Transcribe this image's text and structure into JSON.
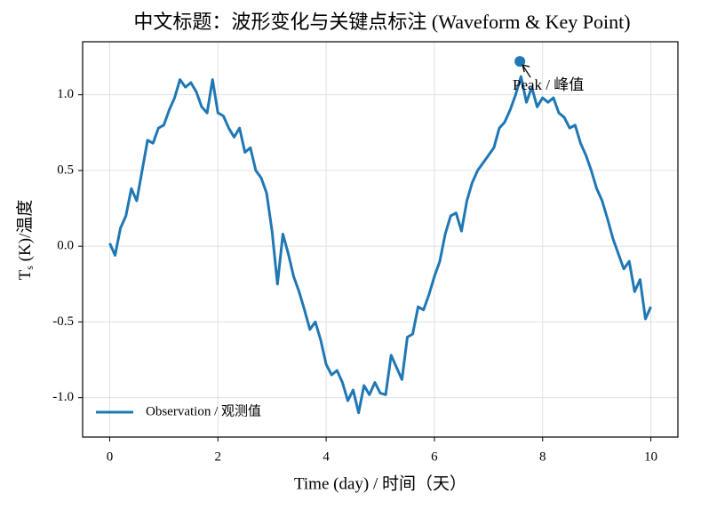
{
  "chart_data": {
    "type": "line",
    "title": "中文标题：波形变化与关键点标注 (Waveform & Key Point)",
    "xlabel": "Time (day) / 时间（天）",
    "ylabel": {
      "main": "T",
      "sub": "s",
      "rest": " (K)/温度"
    },
    "xlim": [
      -0.5,
      10.5
    ],
    "ylim": [
      -1.26,
      1.35
    ],
    "xticks": [
      0,
      2,
      4,
      6,
      8,
      10
    ],
    "yticks": [
      {
        "value": -1,
        "label": "-1.0"
      },
      -0.5,
      {
        "value": 0,
        "label": "0.0"
      },
      0.5,
      {
        "value": 1,
        "label": "1.0"
      }
    ],
    "grid": true,
    "legend": "lower left",
    "x": [
      0,
      0.1,
      0.2,
      0.3,
      0.4,
      0.5,
      0.6,
      0.7,
      0.8,
      0.9,
      1,
      1.1,
      1.2,
      1.3,
      1.4,
      1.5,
      1.6,
      1.7,
      1.8,
      1.9,
      2,
      2.1,
      2.2,
      2.3,
      2.4,
      2.5,
      2.6,
      2.7,
      2.8,
      2.9,
      3,
      3.1,
      3.2,
      3.3,
      3.4,
      3.5,
      3.6,
      3.7,
      3.8,
      3.9,
      4,
      4.1,
      4.2,
      4.3,
      4.4,
      4.5,
      4.6,
      4.7,
      4.8,
      4.9,
      5,
      5.1,
      5.2,
      5.3,
      5.4,
      5.5,
      5.6,
      5.7,
      5.8,
      5.9,
      6,
      6.1,
      6.2,
      6.3,
      6.4,
      6.5,
      6.6,
      6.7,
      6.8,
      6.9,
      7,
      7.1,
      7.2,
      7.3,
      7.4,
      7.5,
      7.6,
      7.7,
      7.8,
      7.9,
      8,
      8.1,
      8.2,
      8.3,
      8.4,
      8.5,
      8.6,
      8.7,
      8.8,
      8.9,
      9,
      9.1,
      9.2,
      9.3,
      9.4,
      9.5,
      9.6,
      9.7,
      9.8,
      9.9,
      10
    ],
    "series": [
      {
        "name": "Observation / 观测值",
        "color": "#1f77b4",
        "values": [
          0.02,
          -0.06,
          0.12,
          0.2,
          0.38,
          0.3,
          0.5,
          0.7,
          0.68,
          0.78,
          0.8,
          0.9,
          0.98,
          1.1,
          1.05,
          1.08,
          1.02,
          0.92,
          0.88,
          1.1,
          0.88,
          0.86,
          0.78,
          0.72,
          0.78,
          0.62,
          0.65,
          0.5,
          0.45,
          0.35,
          0.1,
          -0.25,
          0.08,
          -0.05,
          -0.2,
          -0.3,
          -0.42,
          -0.55,
          -0.5,
          -0.62,
          -0.78,
          -0.85,
          -0.82,
          -0.9,
          -1.02,
          -0.95,
          -1.1,
          -0.92,
          -0.98,
          -0.9,
          -0.97,
          -0.98,
          -0.72,
          -0.8,
          -0.88,
          -0.6,
          -0.58,
          -0.4,
          -0.42,
          -0.32,
          -0.2,
          -0.1,
          0.08,
          0.2,
          0.22,
          0.1,
          0.3,
          0.42,
          0.5,
          0.55,
          0.6,
          0.65,
          0.78,
          0.82,
          0.9,
          1.0,
          1.12,
          0.95,
          1.05,
          0.92,
          0.98,
          0.95,
          0.98,
          0.88,
          0.85,
          0.78,
          0.8,
          0.68,
          0.6,
          0.5,
          0.38,
          0.3,
          0.18,
          0.05,
          -0.05,
          -0.15,
          -0.1,
          -0.3,
          -0.22,
          -0.48,
          -0.4
        ]
      }
    ],
    "annotation": {
      "label": "Peak / 峰值",
      "x": 7.58,
      "y": 1.22
    }
  }
}
